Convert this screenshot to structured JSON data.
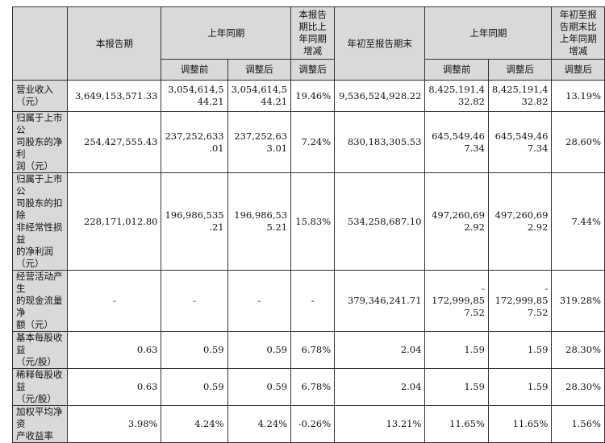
{
  "header": {
    "current_period": "本报告期",
    "prior_year_period": "上年同期",
    "yoy_change": "本报告期比上年同期增减",
    "ytd": "年初至报告期末",
    "prior_year_period_2": "上年同期",
    "ytd_change": "年初至报告期末比上年同期增减",
    "before_adjust": "调整前",
    "after_adjust": "调整后",
    "after_adjust_2": "调整后",
    "before_adjust_2": "调整前",
    "after_adjust_3": "调整后",
    "after_adjust_4": "调整后"
  },
  "rows": [
    {
      "label": "营业收入\n（元）",
      "c1": "3,649,153,571.33",
      "c2": "3,054,614,5\n44.21",
      "c3": "3,054,614,5\n44.21",
      "c4": "19.46%",
      "c5": "9,536,524,928.22",
      "c6": "8,425,191,4\n32.82",
      "c7": "8,425,191,4\n32.82",
      "c8": "13.19%"
    },
    {
      "label": "归属于上市公\n司股东的净利\n润（元）",
      "c1": "254,427,555.43",
      "c2": "237,252,633\n.01",
      "c3": "237,252,63\n3.01",
      "c4": "7.24%",
      "c5": "830,183,305.53",
      "c6": "645,549,46\n7.34",
      "c7": "645,549,46\n7.34",
      "c8": "28.60%"
    },
    {
      "label": "归属于上市公\n司股东的扣除\n非经常性损益\n的净利润\n（元）",
      "c1": "228,171,012.80",
      "c2": "196,986,535\n.21",
      "c3": "196,986,53\n5.21",
      "c4": "15.83%",
      "c5": "534,258,687.10",
      "c6": "497,260,69\n2.92",
      "c7": "497,260,69\n2.92",
      "c8": "7.44%"
    },
    {
      "label": "经营活动产生\n的现金流量净\n额（元）",
      "c1": "-",
      "c2": "-",
      "c3": "-",
      "c4": "-",
      "c5": "379,346,241.71",
      "c6": "-\n172,999,85\n7.52",
      "c7": "-\n172,999,85\n7.52",
      "c8": "319.28%"
    },
    {
      "label": "基本每股收益\n（元/股）",
      "c1": "0.63",
      "c2": "0.59",
      "c3": "0.59",
      "c4": "6.78%",
      "c5": "2.04",
      "c6": "1.59",
      "c7": "1.59",
      "c8": "28.30%"
    },
    {
      "label": "稀释每股收益\n（元/股）",
      "c1": "0.63",
      "c2": "0.59",
      "c3": "0.59",
      "c4": "6.78%",
      "c5": "2.04",
      "c6": "1.59",
      "c7": "1.59",
      "c8": "28.30%"
    },
    {
      "label": "加权平均净资\n产收益率",
      "c1": "3.98%",
      "c2": "4.24%",
      "c3": "4.24%",
      "c4": "-0.26%",
      "c5": "13.21%",
      "c6": "11.65%",
      "c7": "11.65%",
      "c8": "1.56%"
    }
  ]
}
